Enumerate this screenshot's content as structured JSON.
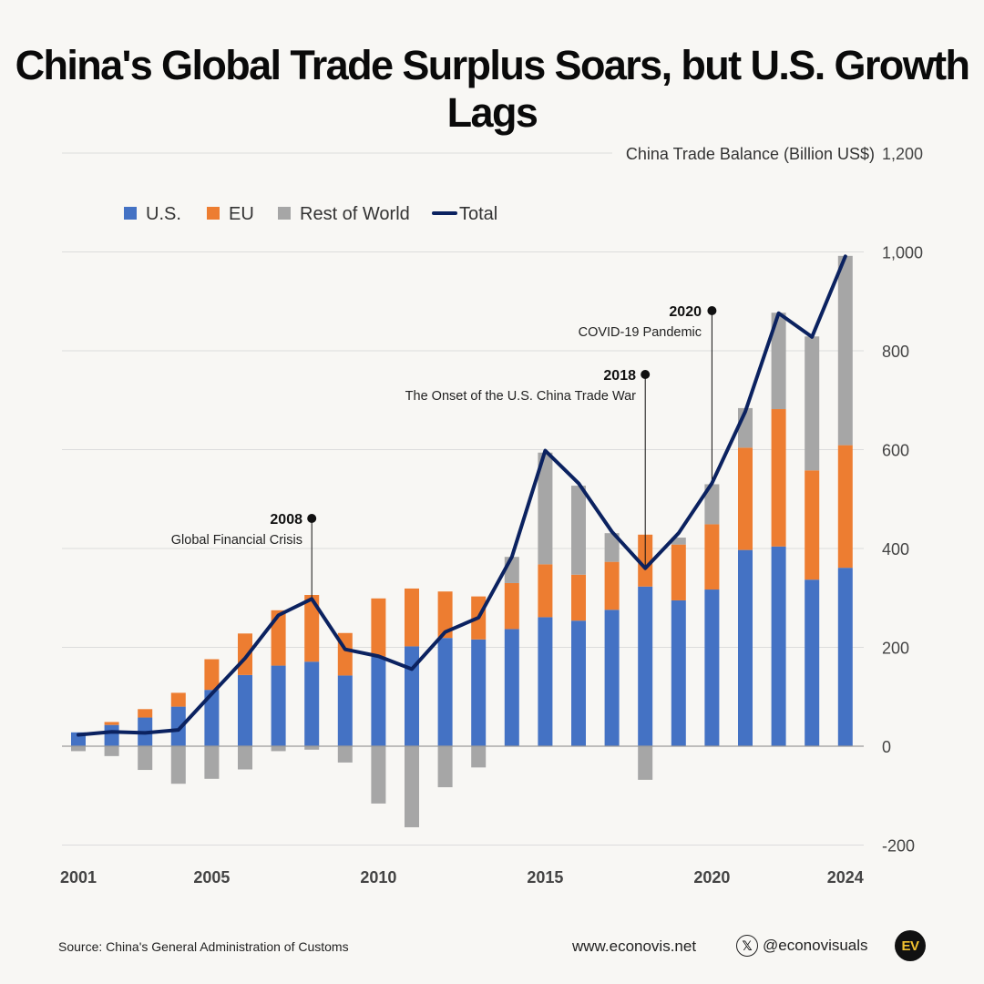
{
  "title": "China's Global Trade Surplus Soars, but U.S. Growth Lags",
  "footer": {
    "source": "Source: China's General Administration of Customs",
    "website": "www.econovis.net",
    "handle": "@econovisuals",
    "logo_text": "EV",
    "social_icon": "x-icon"
  },
  "chart_data": {
    "type": "bar",
    "stacked": true,
    "ylabel": "China Trade Balance (Billion US$)",
    "ylim": [
      -200,
      1200
    ],
    "yticks": [
      -200,
      0,
      200,
      400,
      600,
      800,
      1000,
      1200
    ],
    "ytick_labels": [
      "-200",
      "0",
      "200",
      "400",
      "600",
      "800",
      "1,000",
      "1,200"
    ],
    "xtick_years": [
      2001,
      2005,
      2010,
      2015,
      2020,
      2024
    ],
    "legend_position": "top-left",
    "grid": true,
    "categories": [
      2001,
      2002,
      2003,
      2004,
      2005,
      2006,
      2007,
      2008,
      2009,
      2010,
      2011,
      2012,
      2013,
      2014,
      2015,
      2016,
      2017,
      2018,
      2019,
      2020,
      2021,
      2022,
      2023,
      2024
    ],
    "series": [
      {
        "name": "U.S.",
        "color": "#4472c4",
        "values": [
          28,
          43,
          58,
          80,
          114,
          144,
          163,
          171,
          143,
          181,
          202,
          219,
          216,
          237,
          261,
          254,
          276,
          323,
          295,
          317,
          397,
          404,
          337,
          361
        ]
      },
      {
        "name": "EU",
        "color": "#ed7d31",
        "values": [
          0,
          6,
          17,
          28,
          62,
          84,
          112,
          135,
          86,
          118,
          117,
          94,
          87,
          93,
          107,
          93,
          97,
          105,
          113,
          132,
          207,
          278,
          221,
          248
        ]
      },
      {
        "name": "Rest of World",
        "color": "#a6a6a6",
        "values": [
          -10,
          -20,
          -48,
          -76,
          -66,
          -47,
          -10,
          -7,
          -33,
          -116,
          -164,
          -83,
          -43,
          53,
          226,
          180,
          58,
          -68,
          14,
          81,
          80,
          195,
          271,
          383
        ]
      },
      {
        "name": "Total",
        "type": "line",
        "color": "#0b2260",
        "values": [
          23,
          29,
          27,
          33,
          106,
          178,
          265,
          298,
          196,
          182,
          156,
          231,
          260,
          383,
          598,
          532,
          434,
          360,
          431,
          532,
          677,
          876,
          828,
          991
        ]
      }
    ],
    "annotations": [
      {
        "year": "2008",
        "x": 2008,
        "label": "Global Financial Crisis"
      },
      {
        "year": "2018",
        "x": 2018,
        "label": "The Onset of the U.S. China Trade War"
      },
      {
        "year": "2020",
        "x": 2020,
        "label": "COVID-19 Pandemic"
      }
    ]
  }
}
